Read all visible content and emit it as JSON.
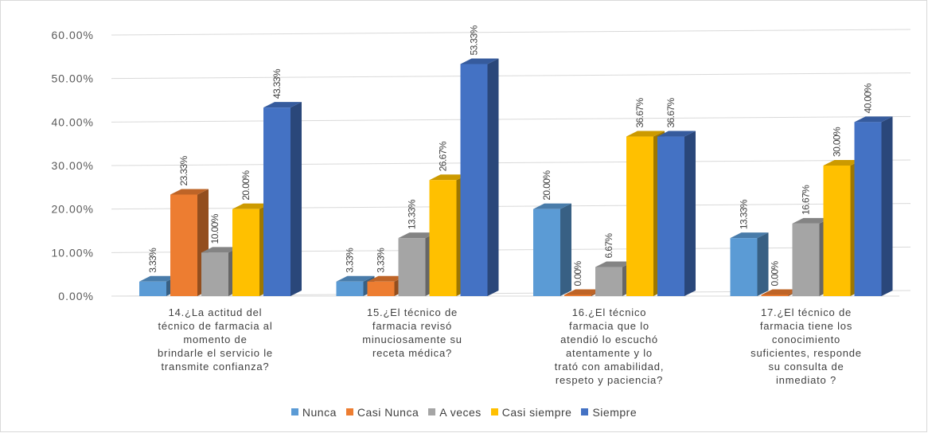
{
  "chart_data": {
    "type": "bar",
    "title": "",
    "xlabel": "",
    "ylabel": "",
    "ylim": [
      0,
      60
    ],
    "y_ticks": [
      "0.00%",
      "10.00%",
      "20.00%",
      "30.00%",
      "40.00%",
      "50.00%",
      "60.00%"
    ],
    "grid": true,
    "legend_position": "bottom",
    "categories": [
      [
        "14.¿La actitud del",
        "técnico de farmacia al",
        "momento de",
        "brindarle el servicio le",
        "transmite confianza?"
      ],
      [
        "15.¿El técnico de",
        "farmacia revisó",
        "minuciosamente su",
        "receta médica?"
      ],
      [
        "16.¿El técnico",
        "farmacia que lo",
        "atendió lo escuchó",
        "atentamente y lo",
        "trató con amabilidad,",
        "respeto y paciencia?"
      ],
      [
        "17.¿El técnico de",
        "farmacia tiene los",
        "conocimiento",
        "suficientes, responde",
        "su consulta de",
        "inmediato ?"
      ]
    ],
    "series": [
      {
        "name": "Nunca",
        "color": "#5b9bd5",
        "values": [
          3.33,
          3.33,
          20.0,
          13.33
        ],
        "labels": [
          "3.33%",
          "3.33%",
          "20.00%",
          "13.33%"
        ]
      },
      {
        "name": "Casi Nunca",
        "color": "#ed7d31",
        "values": [
          23.33,
          3.33,
          0.0,
          0.0
        ],
        "labels": [
          "23.33%",
          "3.33%",
          "0.00%",
          "0.00%"
        ]
      },
      {
        "name": "A veces",
        "color": "#a5a5a5",
        "values": [
          10.0,
          13.33,
          6.67,
          16.67
        ],
        "labels": [
          "10.00%",
          "13.33%",
          "6.67%",
          "16.67%"
        ]
      },
      {
        "name": "Casi siempre",
        "color": "#ffc000",
        "values": [
          20.0,
          26.67,
          36.67,
          30.0
        ],
        "labels": [
          "20.00%",
          "26.67%",
          "36.67%",
          "30.00%"
        ]
      },
      {
        "name": "Siempre",
        "color": "#4472c4",
        "values": [
          43.33,
          53.33,
          36.67,
          40.0
        ],
        "labels": [
          "43.33%",
          "53.33%",
          "36.67%",
          "40.00%"
        ]
      }
    ]
  }
}
